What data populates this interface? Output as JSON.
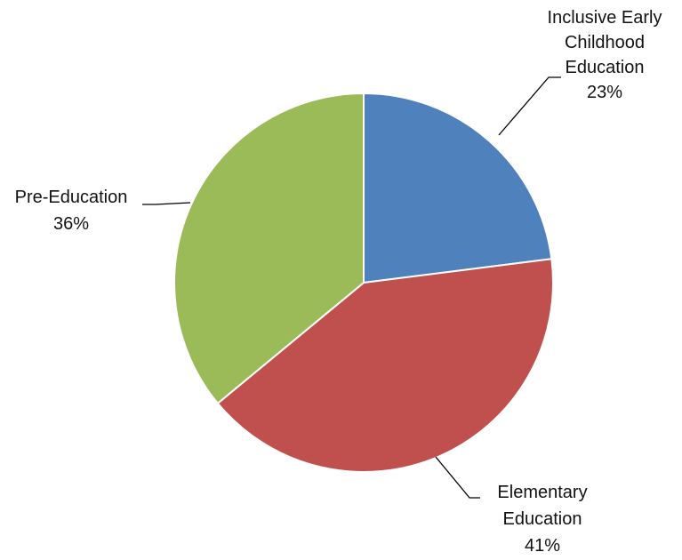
{
  "chart_data": {
    "type": "pie",
    "title": "",
    "start_angle_deg": 0,
    "direction": "clockwise",
    "slices": [
      {
        "label_lines": [
          "Inclusive Early",
          "Childhood",
          "Education"
        ],
        "value": 23,
        "value_label": "23%",
        "color": "#4F81BD"
      },
      {
        "label_lines": [
          "Elementary",
          "Education"
        ],
        "value": 41,
        "value_label": "41%",
        "color": "#C0504D"
      },
      {
        "label_lines": [
          "Pre-Education"
        ],
        "value": 36,
        "value_label": "36%",
        "color": "#9BBB59"
      }
    ],
    "legend": "none",
    "data_labels": "outside-with-leader-lines"
  }
}
